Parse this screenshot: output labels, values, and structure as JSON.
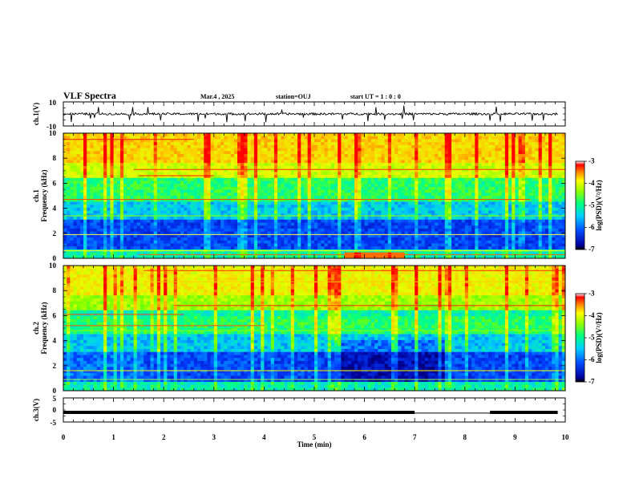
{
  "header": {
    "title": "VLF Spectra",
    "date": "Mar.4 , 2025",
    "station": "station=OUJ",
    "start": "start UT =  1 : 0  : 0"
  },
  "colors": {
    "spec_low": "#000050",
    "spec_high": "#ff0000",
    "trace": "#000000"
  },
  "chart_data": [
    {
      "type": "line",
      "id": "ch1-waveform",
      "ylabel": "ch.1(V)",
      "ylim": [
        -10,
        10
      ],
      "yticks": [
        "10",
        "-10"
      ],
      "xlim": [
        0,
        10
      ],
      "description_of_series": "broadband waveform, amplitude mostly between -1 and 1 V with spikes"
    },
    {
      "type": "heatmap",
      "id": "ch1-spectrogram",
      "ylabel": "ch.1\nFrequency (kHz)",
      "ylabel_lines": [
        "ch.1",
        "Frequency (kHz)"
      ],
      "ylim": [
        0,
        10
      ],
      "yticks": [
        "0",
        "2",
        "4",
        "6",
        "8",
        "10"
      ],
      "xlim": [
        0,
        10
      ],
      "colorbar": {
        "label": "log(PSD)(V²/Hz)",
        "range": [
          -7,
          -3
        ],
        "ticks": [
          "-3",
          "-4",
          "-5",
          "-6",
          "-7"
        ]
      }
    },
    {
      "type": "heatmap",
      "id": "ch2-spectrogram",
      "ylabel": "ch.2\nFrequency (kHz)",
      "ylabel_lines": [
        "ch.2",
        "Frequency (kHz)"
      ],
      "ylim": [
        0,
        10
      ],
      "yticks": [
        "0",
        "2",
        "4",
        "6",
        "8",
        "10"
      ],
      "xlim": [
        0,
        10
      ],
      "colorbar": {
        "label": "log(PSD)(V²/Hz)",
        "range": [
          -7,
          -3
        ],
        "ticks": [
          "-3",
          "-4",
          "-5",
          "-6",
          "-7"
        ]
      }
    },
    {
      "type": "line",
      "id": "ch3-signal",
      "ylabel": "ch.3(V)",
      "ylim": [
        -5,
        5
      ],
      "yticks": [
        "5",
        "0",
        "-5"
      ],
      "xlim": [
        0,
        10
      ],
      "segments": [
        {
          "x": [
            0,
            7
          ],
          "y": -1
        },
        {
          "x": [
            7,
            8.5
          ],
          "y": -1.3
        },
        {
          "x": [
            8.5,
            9.85
          ],
          "y": -1
        }
      ]
    }
  ],
  "xaxis": {
    "label": "Time (min)",
    "ticks": [
      "0",
      "1",
      "2",
      "3",
      "4",
      "5",
      "6",
      "7",
      "8",
      "9",
      "10"
    ]
  }
}
